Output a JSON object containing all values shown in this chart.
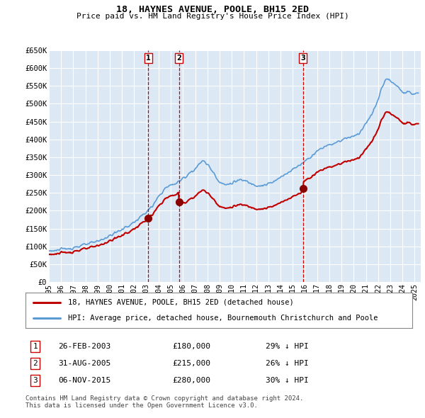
{
  "title": "18, HAYNES AVENUE, POOLE, BH15 2ED",
  "subtitle": "Price paid vs. HM Land Registry's House Price Index (HPI)",
  "ylabel_ticks": [
    "£0",
    "£50K",
    "£100K",
    "£150K",
    "£200K",
    "£250K",
    "£300K",
    "£350K",
    "£400K",
    "£450K",
    "£500K",
    "£550K",
    "£600K",
    "£650K"
  ],
  "ylim": [
    0,
    650000
  ],
  "xlim_start": 1995.0,
  "xlim_end": 2025.5,
  "background_color": "#ffffff",
  "plot_bg_color": "#dce9f5",
  "grid_color": "#ffffff",
  "hpi_color": "#5b9bd5",
  "hpi_fill_color": "#c5d9f0",
  "price_color": "#c00000",
  "sale_marker_color": "#8b0000",
  "vline_color": "#cc0000",
  "transactions": [
    {
      "label": "1",
      "date_x": 2003.15,
      "price": 180000,
      "text": "26-FEB-2003",
      "amount": "£180,000",
      "pct": "29% ↓ HPI"
    },
    {
      "label": "2",
      "date_x": 2005.67,
      "price": 215000,
      "text": "31-AUG-2005",
      "amount": "£215,000",
      "pct": "26% ↓ HPI"
    },
    {
      "label": "3",
      "date_x": 2015.85,
      "price": 280000,
      "text": "06-NOV-2015",
      "amount": "£280,000",
      "pct": "30% ↓ HPI"
    }
  ],
  "legend_entries": [
    {
      "label": "18, HAYNES AVENUE, POOLE, BH15 2ED (detached house)",
      "color": "#c00000",
      "lw": 2
    },
    {
      "label": "HPI: Average price, detached house, Bournemouth Christchurch and Poole",
      "color": "#5b9bd5",
      "lw": 2
    }
  ],
  "footer": "Contains HM Land Registry data © Crown copyright and database right 2024.\nThis data is licensed under the Open Government Licence v3.0.",
  "xticks": [
    1995,
    1996,
    1997,
    1998,
    1999,
    2000,
    2001,
    2002,
    2003,
    2004,
    2005,
    2006,
    2007,
    2008,
    2009,
    2010,
    2011,
    2012,
    2013,
    2014,
    2015,
    2016,
    2017,
    2018,
    2019,
    2020,
    2021,
    2022,
    2023,
    2024,
    2025
  ]
}
